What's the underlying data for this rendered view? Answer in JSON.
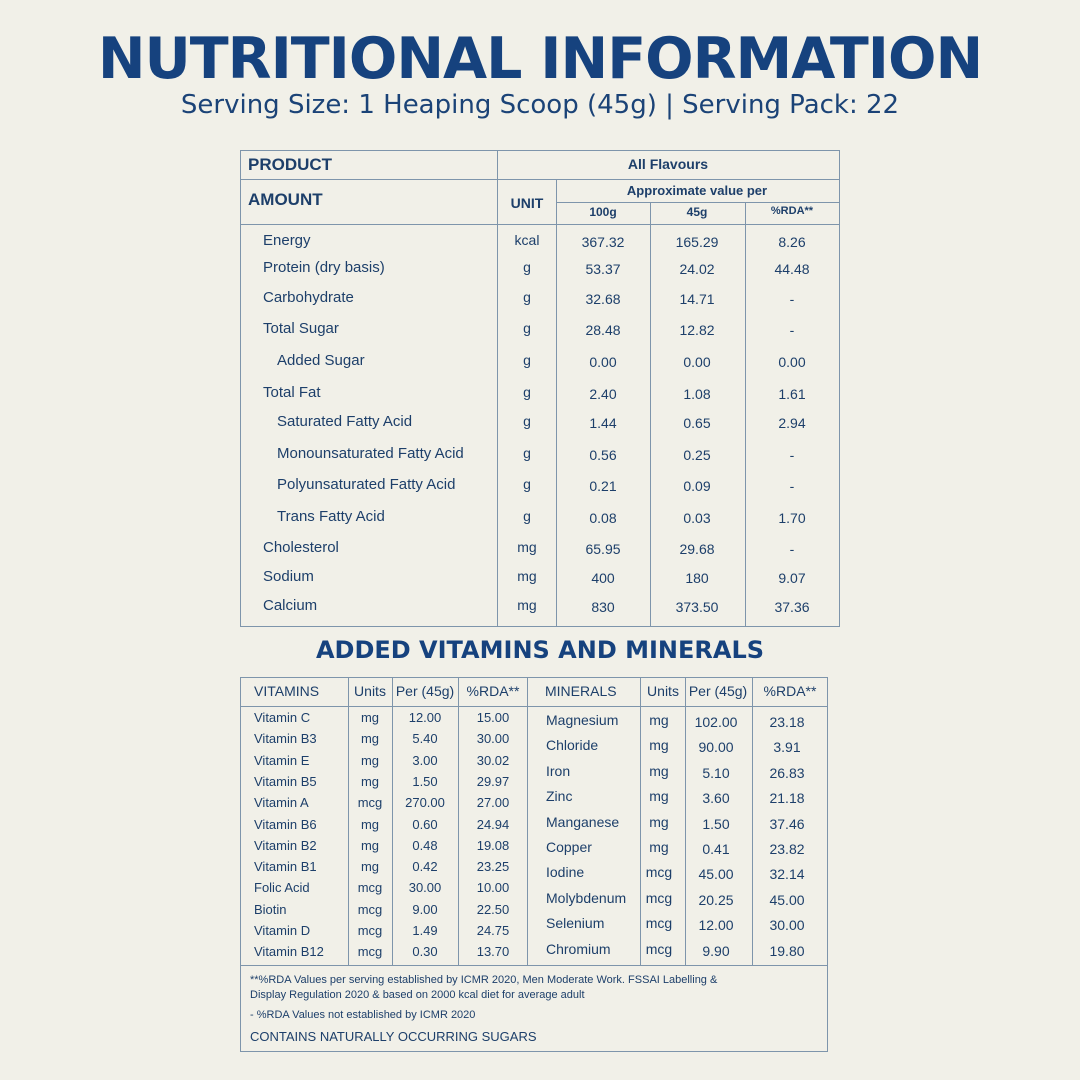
{
  "title": "NUTRITIONAL INFORMATION",
  "subtitle": "Serving Size: 1 Heaping Scoop (45g) | Serving Pack: 22",
  "nutrition": {
    "product_label": "PRODUCT",
    "flavour_label": "All Flavours",
    "amount_label": "AMOUNT",
    "unit_label": "UNIT",
    "approx_label": "Approximate value per",
    "col_100g": "100g",
    "col_45g": "45g",
    "col_rda": "%RDA**",
    "rows": [
      {
        "name": "Energy",
        "unit": "kcal",
        "v100": "367.32",
        "v45": "165.29",
        "rda": "8.26",
        "indent": 0
      },
      {
        "name": "Protein (dry basis)",
        "unit": "g",
        "v100": "53.37",
        "v45": "24.02",
        "rda": "44.48",
        "indent": 0
      },
      {
        "name": "Carbohydrate",
        "unit": "g",
        "v100": "32.68",
        "v45": "14.71",
        "rda": "-",
        "indent": 0
      },
      {
        "name": "Total Sugar",
        "unit": "g",
        "v100": "28.48",
        "v45": "12.82",
        "rda": "-",
        "indent": 0
      },
      {
        "name": "Added Sugar",
        "unit": "g",
        "v100": "0.00",
        "v45": "0.00",
        "rda": "0.00",
        "indent": 1
      },
      {
        "name": "Total Fat",
        "unit": "g",
        "v100": "2.40",
        "v45": "1.08",
        "rda": "1.61",
        "indent": 0
      },
      {
        "name": "Saturated Fatty Acid",
        "unit": "g",
        "v100": "1.44",
        "v45": "0.65",
        "rda": "2.94",
        "indent": 1
      },
      {
        "name": "Monounsaturated Fatty Acid",
        "unit": "g",
        "v100": "0.56",
        "v45": "0.25",
        "rda": "-",
        "indent": 1
      },
      {
        "name": "Polyunsaturated Fatty Acid",
        "unit": "g",
        "v100": "0.21",
        "v45": "0.09",
        "rda": "-",
        "indent": 1
      },
      {
        "name": "Trans Fatty Acid",
        "unit": "g",
        "v100": "0.08",
        "v45": "0.03",
        "rda": "1.70",
        "indent": 1
      },
      {
        "name": "Cholesterol",
        "unit": "mg",
        "v100": "65.95",
        "v45": "29.68",
        "rda": "-",
        "indent": 0
      },
      {
        "name": "Sodium",
        "unit": "mg",
        "v100": "400",
        "v45": "180",
        "rda": "9.07",
        "indent": 0
      },
      {
        "name": "Calcium",
        "unit": "mg",
        "v100": "830",
        "v45": "373.50",
        "rda": "37.36",
        "indent": 0
      }
    ]
  },
  "section2_title": "ADDED VITAMINS AND MINERALS",
  "vm": {
    "headers": {
      "vitamins": "VITAMINS",
      "units": "Units",
      "per": "Per (45g)",
      "rda": "%RDA**",
      "minerals": "MINERALS"
    },
    "vitamins": [
      {
        "name": "Vitamin C",
        "unit": "mg",
        "per": "12.00",
        "rda": "15.00"
      },
      {
        "name": "Vitamin B3",
        "unit": "mg",
        "per": "5.40",
        "rda": "30.00"
      },
      {
        "name": "Vitamin E",
        "unit": "mg",
        "per": "3.00",
        "rda": "30.02"
      },
      {
        "name": "Vitamin B5",
        "unit": "mg",
        "per": "1.50",
        "rda": "29.97"
      },
      {
        "name": "Vitamin A",
        "unit": "mcg",
        "per": "270.00",
        "rda": "27.00"
      },
      {
        "name": "Vitamin B6",
        "unit": "mg",
        "per": "0.60",
        "rda": "24.94"
      },
      {
        "name": "Vitamin B2",
        "unit": "mg",
        "per": "0.48",
        "rda": "19.08"
      },
      {
        "name": "Vitamin B1",
        "unit": "mg",
        "per": "0.42",
        "rda": "23.25"
      },
      {
        "name": "Folic Acid",
        "unit": "mcg",
        "per": "30.00",
        "rda": "10.00"
      },
      {
        "name": "Biotin",
        "unit": "mcg",
        "per": "9.00",
        "rda": "22.50"
      },
      {
        "name": "Vitamin D",
        "unit": "mcg",
        "per": "1.49",
        "rda": "24.75"
      },
      {
        "name": "Vitamin B12",
        "unit": "mcg",
        "per": "0.30",
        "rda": "13.70"
      }
    ],
    "minerals": [
      {
        "name": "Magnesium",
        "unit": "mg",
        "per": "102.00",
        "rda": "23.18"
      },
      {
        "name": "Chloride",
        "unit": "mg",
        "per": "90.00",
        "rda": "3.91"
      },
      {
        "name": "Iron",
        "unit": "mg",
        "per": "5.10",
        "rda": "26.83"
      },
      {
        "name": "Zinc",
        "unit": "mg",
        "per": "3.60",
        "rda": "21.18"
      },
      {
        "name": "Manganese",
        "unit": "mg",
        "per": "1.50",
        "rda": "37.46"
      },
      {
        "name": "Copper",
        "unit": "mg",
        "per": "0.41",
        "rda": "23.82"
      },
      {
        "name": "Iodine",
        "unit": "mcg",
        "per": "45.00",
        "rda": "32.14"
      },
      {
        "name": "Molybdenum",
        "unit": "mcg",
        "per": "20.25",
        "rda": "45.00"
      },
      {
        "name": "Selenium",
        "unit": "mcg",
        "per": "12.00",
        "rda": "30.00"
      },
      {
        "name": "Chromium",
        "unit": "mcg",
        "per": "9.90",
        "rda": "19.80"
      }
    ]
  },
  "footnotes": {
    "note1": "**%RDA Values per serving established by ICMR 2020, Men Moderate Work. FSSAI Labelling &",
    "note2": "Display Regulation 2020 & based on 2000 kcal diet for average adult",
    "note3": "- %RDA Values not established by ICMR 2020",
    "note4": "CONTAINS NATURALLY OCCURRING SUGARS"
  }
}
